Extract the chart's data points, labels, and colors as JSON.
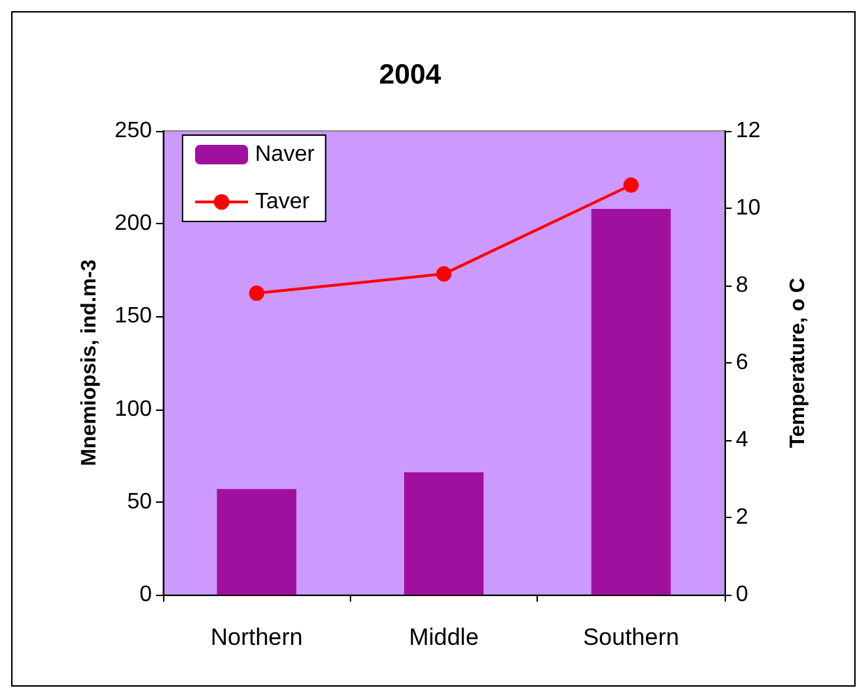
{
  "chart_data": {
    "type": "bar",
    "title": "2004",
    "ylabel": "Mnemiopsis, ind.m-3",
    "y2label": "Temperature, o C",
    "categories": [
      "Northern",
      "Middle",
      "Southern"
    ],
    "series": [
      {
        "name": "Naver",
        "color": "#a0109f",
        "values": [
          57,
          66,
          208
        ]
      },
      {
        "name": "Taver",
        "type": "line",
        "axis": "y2",
        "color": "#ff0000",
        "marker": "circle",
        "values": [
          7.8,
          8.3,
          10.6
        ]
      }
    ],
    "ylim": [
      0,
      250
    ],
    "yticks": [
      0,
      50,
      100,
      150,
      200,
      250
    ],
    "y2lim": [
      0,
      12
    ],
    "y2ticks": [
      0,
      2,
      4,
      6,
      8,
      10,
      12
    ],
    "grid": false,
    "legend": "top left"
  }
}
